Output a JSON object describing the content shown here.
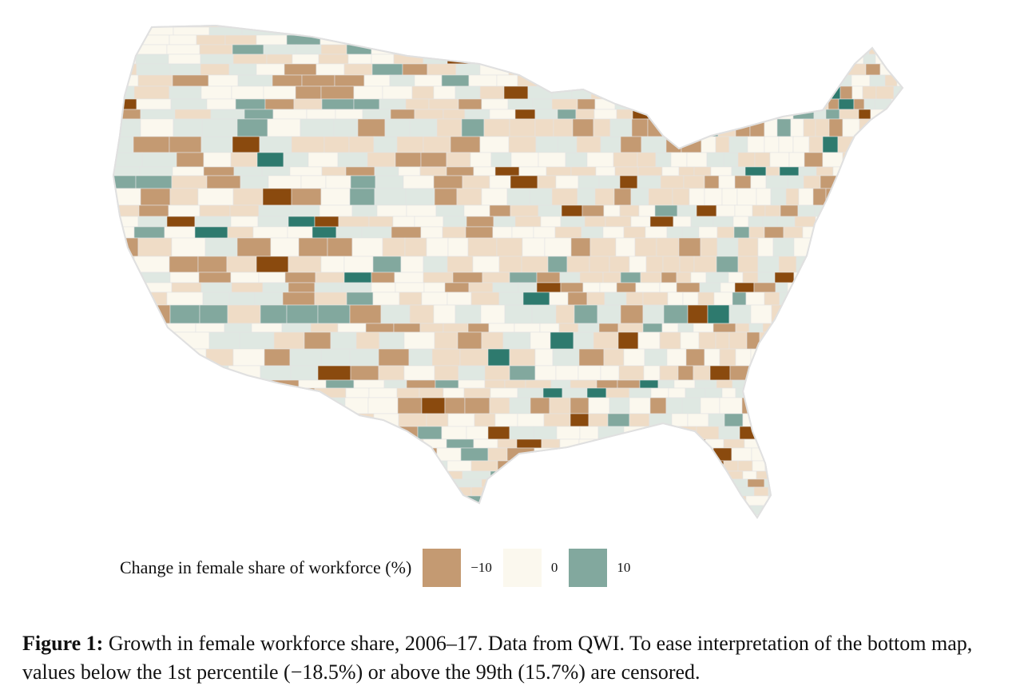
{
  "legend": {
    "title": "Change in female share of workforce (%)",
    "stops": [
      {
        "label": "−10",
        "color": "#c49a72"
      },
      {
        "label": "0",
        "color": "#fbf8ee"
      },
      {
        "label": "10",
        "color": "#82a89e"
      }
    ]
  },
  "caption": {
    "label": "Figure 1:",
    "text": "Growth in female workforce share, 2006–17. Data from QWI. To ease interpretation of the bottom map, values below the 1st percentile (−18.5%) or above the 99th (15.7%) are censored."
  },
  "colors": {
    "dark_brown": "#8a4a0e",
    "brown": "#c49a72",
    "light_brown": "#efdcc6",
    "neutral": "#fbf8ee",
    "light_teal": "#dfe8e2",
    "teal": "#82a89e",
    "dark_teal": "#2e7a6e",
    "border": "#e3e3e3"
  }
}
